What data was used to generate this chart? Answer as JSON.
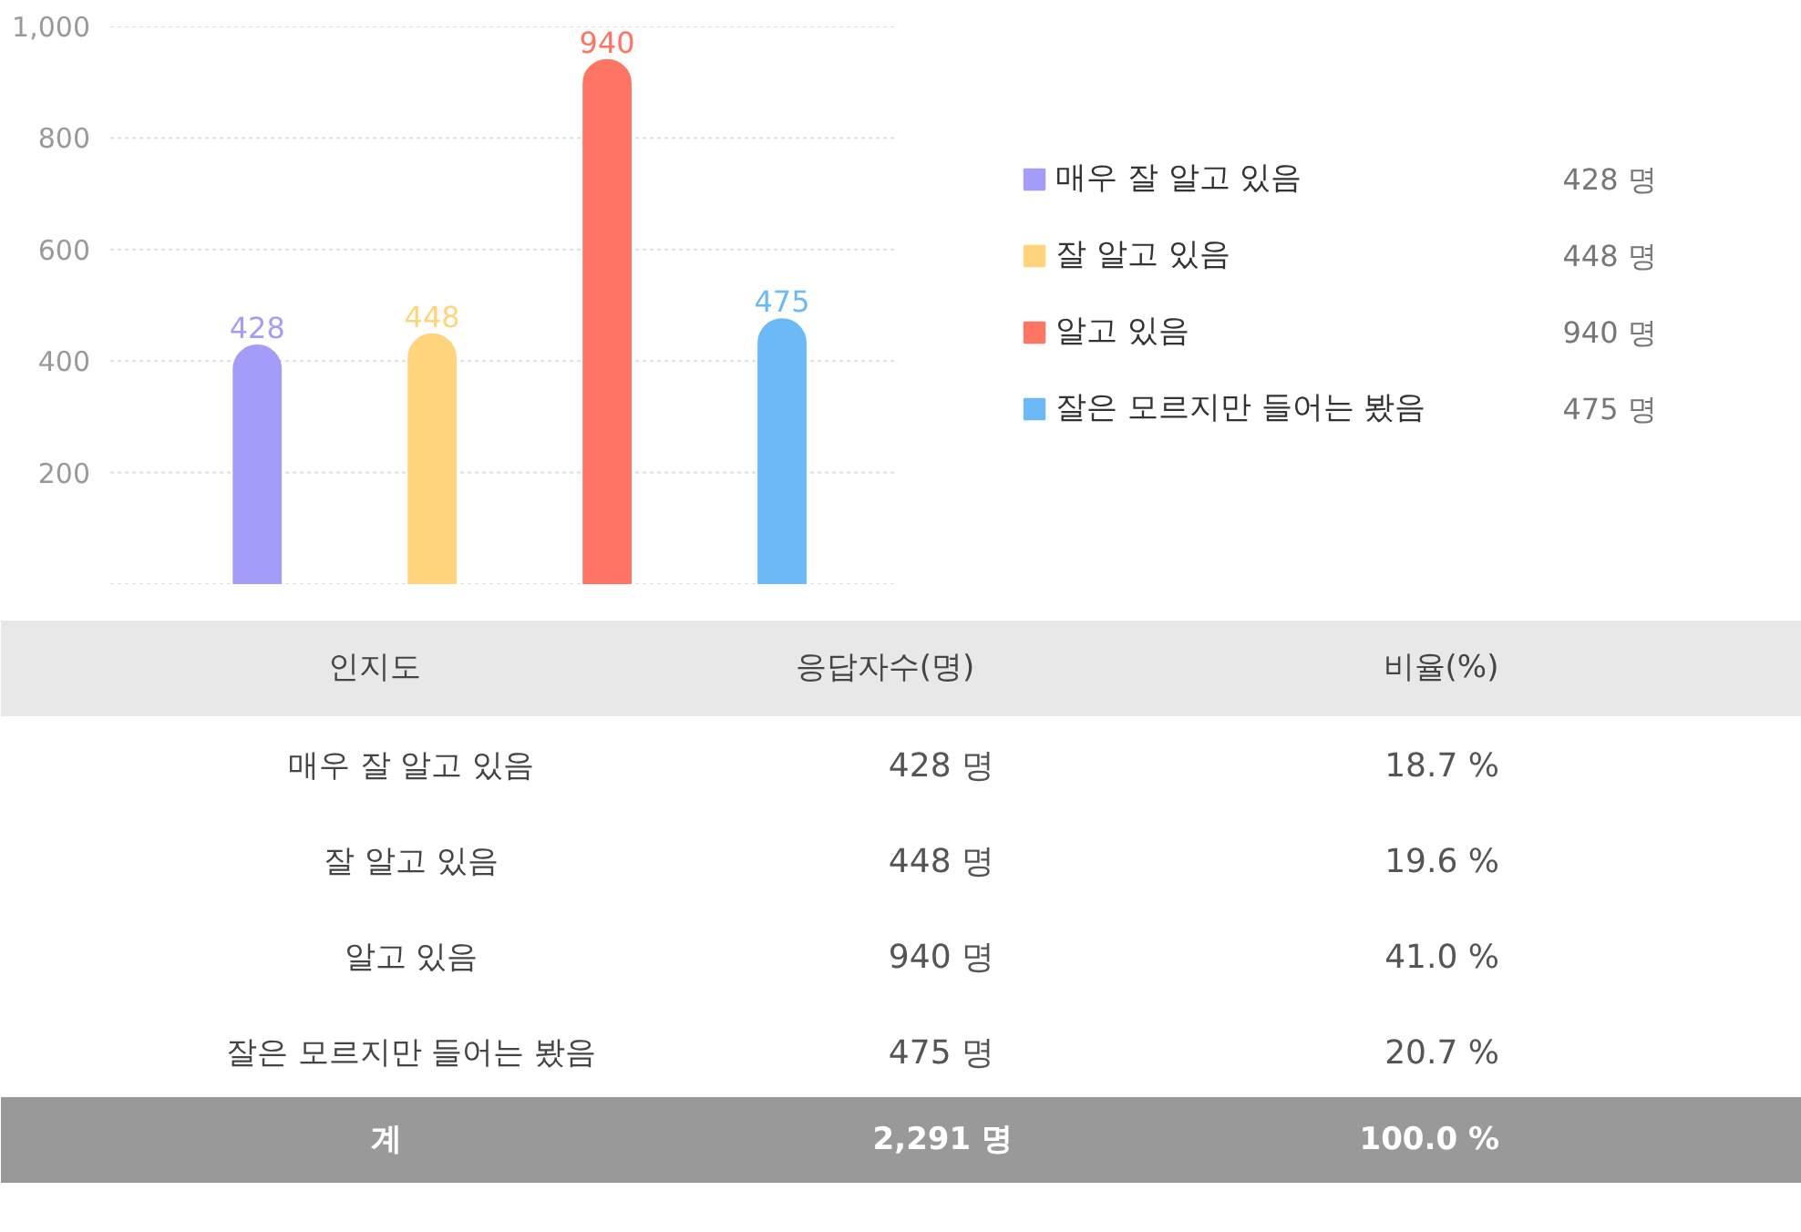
{
  "chart_data": {
    "type": "bar",
    "categories": [
      null,
      null,
      null,
      null
    ],
    "series": [
      {
        "name": "매우 잘 알고 있음",
        "color": "#a49cf9",
        "values": [
          428,
          null,
          null,
          null
        ]
      },
      {
        "name": "잘 알고 있음",
        "color": "#ffd47c",
        "values": [
          null,
          448,
          null,
          null
        ]
      },
      {
        "name": "알고 있음",
        "color": "#ff7563",
        "values": [
          null,
          null,
          940,
          null
        ]
      },
      {
        "name": "잘은 모르지만 들어는 봤음",
        "color": "#6cb9f8",
        "values": [
          null,
          null,
          null,
          475
        ]
      }
    ],
    "ylim": [
      0,
      1000
    ],
    "yticks": [
      200,
      400,
      600,
      800,
      {
        "value": 1000,
        "label": "1,000"
      }
    ],
    "grid": "y",
    "legend": "right",
    "tick_labels": "y",
    "data_labels": true,
    "annotations": [
      "인지도",
      "응답자수(명)",
      "비율(%)",
      "428 명",
      "448 명",
      "940 명",
      "475 명",
      "18.7 %",
      "19.6 %",
      "41.0 %",
      "20.7 %",
      "계",
      "2,291 명",
      "100.0 %"
    ]
  }
}
